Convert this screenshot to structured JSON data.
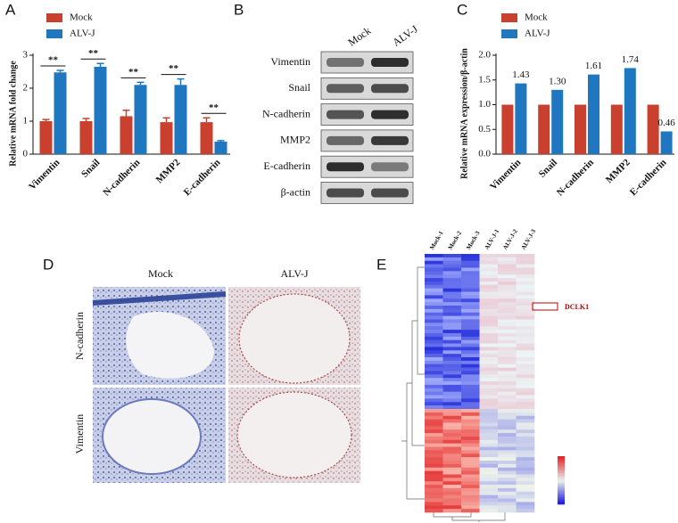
{
  "chart_data": [
    {
      "type": "bar",
      "panel": "A",
      "ylabel": "Relative mRNA fold change",
      "categories": [
        "Vimentin",
        "Snail",
        "N-cadherin",
        "MMP2",
        "E-cadherin"
      ],
      "series": [
        {
          "name": "Mock",
          "color": "#c9402e",
          "values": [
            1.0,
            1.0,
            1.15,
            0.97,
            0.97
          ],
          "errors": [
            0.05,
            0.08,
            0.18,
            0.13,
            0.13
          ]
        },
        {
          "name": "ALV-J",
          "color": "#1f77c0",
          "values": [
            2.48,
            2.65,
            2.1,
            2.1,
            0.38
          ],
          "errors": [
            0.06,
            0.1,
            0.08,
            0.18,
            0.03
          ]
        }
      ],
      "annotations": [
        "**",
        "**",
        "**",
        "**",
        "**"
      ],
      "ylim": [
        0,
        3
      ],
      "yticks": [
        0,
        1,
        2,
        3
      ]
    },
    {
      "type": "bar",
      "panel": "C",
      "ylabel": "Relative mRNA expression/β-actin",
      "categories": [
        "Vimentin",
        "Snail",
        "N-cadherin",
        "MMP2",
        "E-cadherin"
      ],
      "series": [
        {
          "name": "Mock",
          "color": "#c9402e",
          "values": [
            1,
            1,
            1,
            1,
            1
          ]
        },
        {
          "name": "ALV-J",
          "color": "#1f77c0",
          "values": [
            1.43,
            1.3,
            1.61,
            1.74,
            0.46
          ],
          "value_labels": [
            "1.43",
            "1.30",
            "1.61",
            "1.74",
            "0.46"
          ]
        }
      ],
      "ylim": [
        0,
        2
      ],
      "yticks": [
        {
          "value": 0,
          "label": "0.0"
        },
        0.5,
        {
          "value": 1,
          "label": "1.0"
        },
        1.5,
        {
          "value": 2,
          "label": "2.0"
        }
      ]
    }
  ],
  "panel_b": {
    "label": "B",
    "columns": [
      "Mock",
      "ALV-J"
    ],
    "rows": [
      "Vimentin",
      "Snail",
      "N-cadherin",
      "MMP2",
      "E-cadherin",
      "β-actin"
    ]
  },
  "panel_d": {
    "label": "D",
    "columns": [
      "Mock",
      "ALV-J"
    ],
    "rows": [
      "N-cadherin",
      "Vimentin"
    ]
  },
  "panel_e": {
    "label": "E",
    "columns": [
      "Mock-1",
      "Mock-2",
      "Mock-3",
      "ALV-J-1",
      "ALV-J-2",
      "ALV-J-3"
    ],
    "highlight": "DCLK1"
  }
}
